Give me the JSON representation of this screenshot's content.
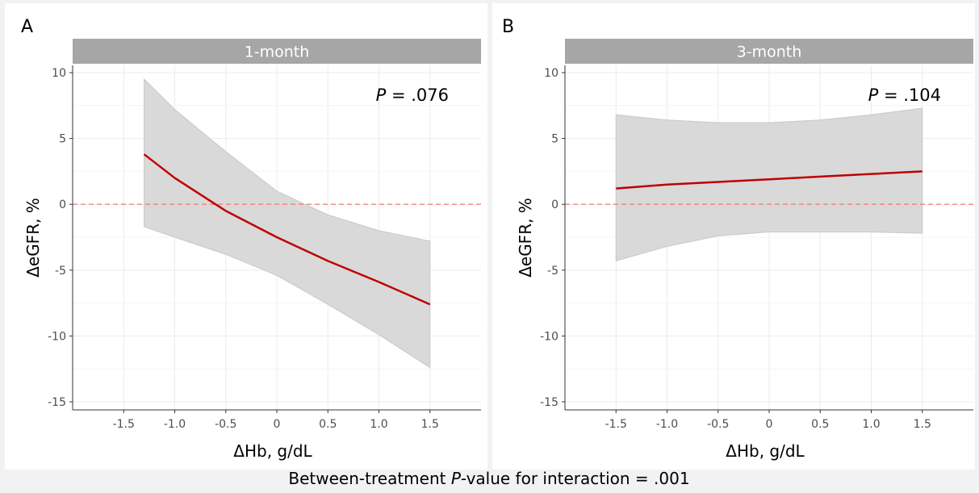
{
  "footer": "Between-treatment {i:P}-value for interaction = .001",
  "chart_data": [
    {
      "type": "line",
      "panel_letter": "A",
      "title": "1-month",
      "xlabel": "ΔHb, g/dL",
      "ylabel": "ΔeGFR, %",
      "annotation": "{i:P} = .076",
      "xlim": [
        -2.0,
        2.0
      ],
      "ylim": [
        -15,
        10
      ],
      "xticks": [
        -1.5,
        -1.0,
        -0.5,
        0,
        0.5,
        1.0,
        1.5
      ],
      "xtick_labels": [
        "-1.5",
        "-1.0",
        "-0.5",
        "0",
        "0.5",
        "1.0",
        "1.5"
      ],
      "yticks": [
        -15,
        -10,
        -5,
        0,
        5,
        10
      ],
      "ytick_labels": [
        "-15",
        "-10",
        "-5",
        "0",
        "5",
        "10"
      ],
      "reference_line": 0,
      "x": [
        -1.3,
        -1.0,
        -0.5,
        0.0,
        0.5,
        1.0,
        1.5
      ],
      "y": [
        3.8,
        2.0,
        -0.5,
        -2.5,
        -4.3,
        -5.9,
        -7.6
      ],
      "ci_lower": [
        -1.7,
        -2.5,
        -3.8,
        -5.4,
        -7.6,
        -9.9,
        -12.4
      ],
      "ci_upper": [
        9.5,
        7.2,
        4.0,
        1.0,
        -0.8,
        -2.0,
        -2.8
      ],
      "grid": true,
      "colors": {
        "line": "#c00000",
        "band": "#d9d9d9",
        "strip": "#a6a6a6",
        "reference": "#f08080"
      }
    },
    {
      "type": "line",
      "panel_letter": "B",
      "title": "3-month",
      "xlabel": "ΔHb, g/dL",
      "ylabel": "ΔeGFR, %",
      "annotation": "{i:P} = .104",
      "xlim": [
        -2.0,
        2.0
      ],
      "ylim": [
        -15,
        10
      ],
      "xticks": [
        -1.5,
        -1.0,
        -0.5,
        0,
        0.5,
        1.0,
        1.5
      ],
      "xtick_labels": [
        "-1.5",
        "-1.0",
        "-0.5",
        "0",
        "0.5",
        "1.0",
        "1.5"
      ],
      "yticks": [
        -15,
        -10,
        -5,
        0,
        5,
        10
      ],
      "ytick_labels": [
        "-15",
        "-10",
        "-5",
        "0",
        "5",
        "10"
      ],
      "reference_line": 0,
      "x": [
        -1.5,
        -1.0,
        -0.5,
        0.0,
        0.5,
        1.0,
        1.5
      ],
      "y": [
        1.2,
        1.5,
        1.7,
        1.9,
        2.1,
        2.3,
        2.5
      ],
      "ci_lower": [
        -4.3,
        -3.2,
        -2.4,
        -2.1,
        -2.1,
        -2.1,
        -2.2
      ],
      "ci_upper": [
        6.8,
        6.4,
        6.2,
        6.2,
        6.4,
        6.8,
        7.3
      ],
      "grid": true,
      "colors": {
        "line": "#c00000",
        "band": "#d9d9d9",
        "strip": "#a6a6a6",
        "reference": "#f08080"
      }
    }
  ]
}
